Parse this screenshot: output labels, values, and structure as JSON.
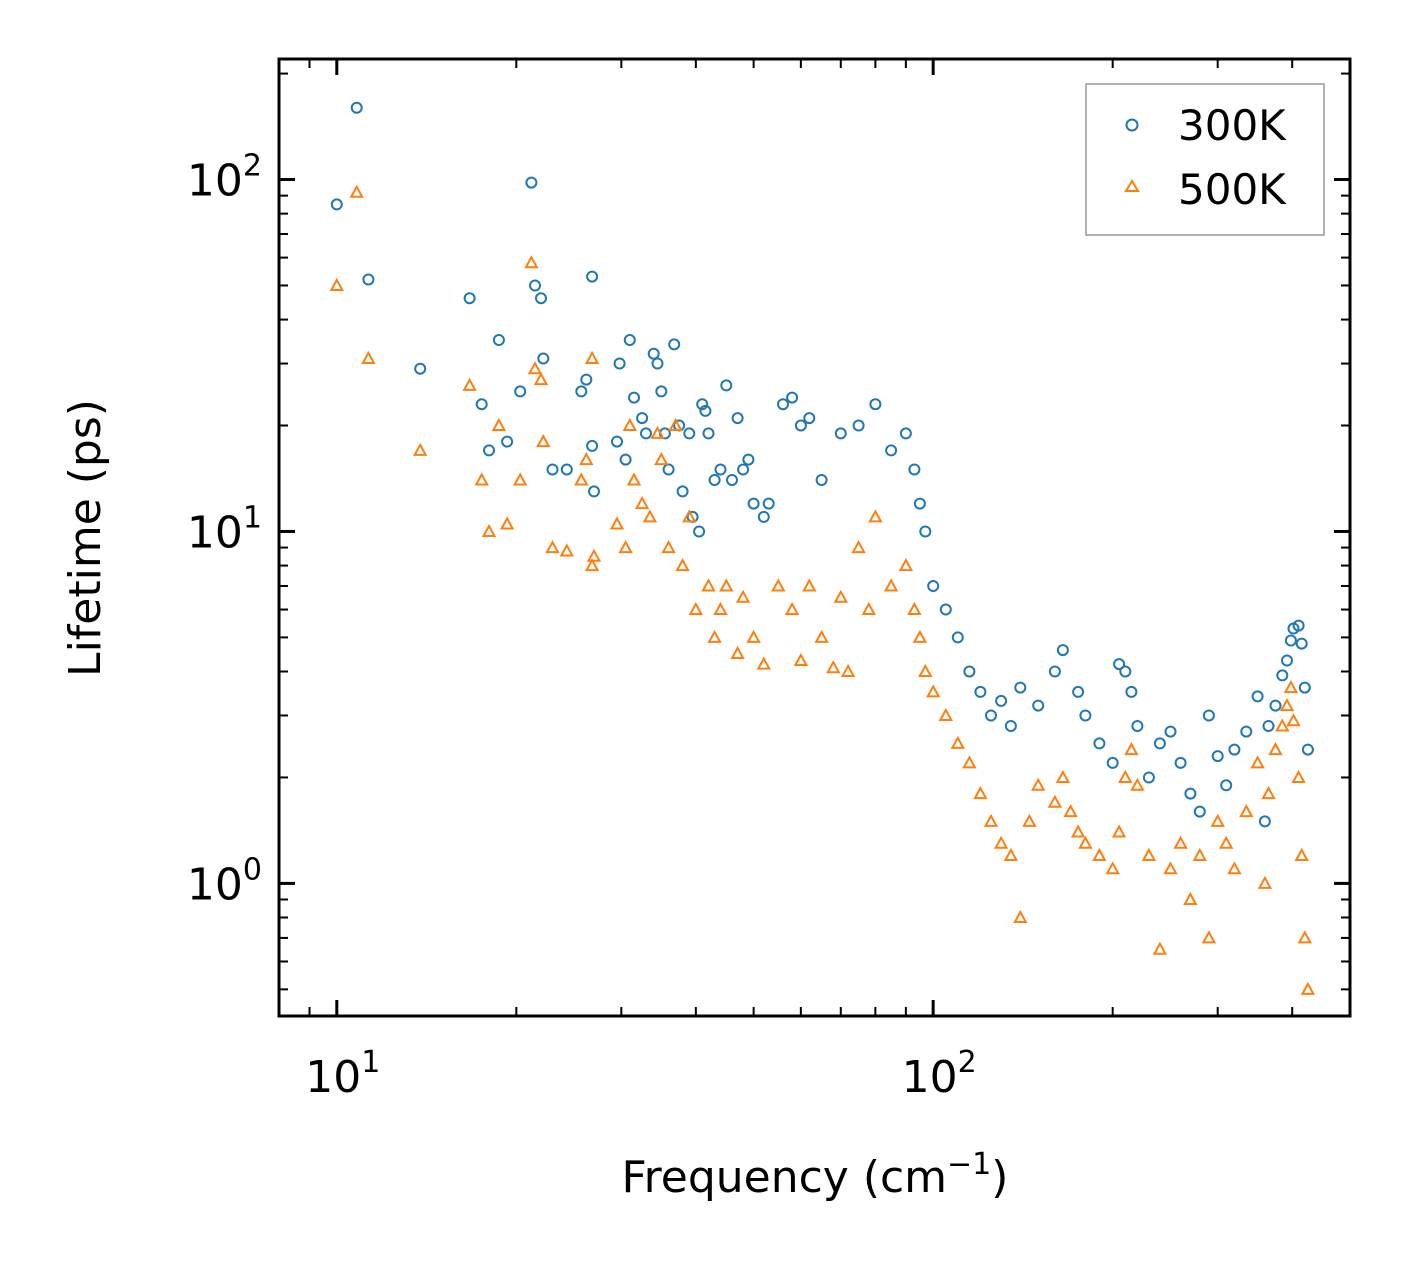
{
  "chart_data": {
    "type": "scatter",
    "title": "",
    "xlabel": "Frequency (cm",
    "xlabel_sup": "−1",
    "xlabel_tail": ")",
    "ylabel": "Lifetime (ps)",
    "xscale": "log",
    "yscale": "log",
    "xlim": [
      8,
      500
    ],
    "ylim": [
      0.42,
      220
    ],
    "x_ticks": [
      {
        "value": 10,
        "base": "10",
        "exp": "1"
      },
      {
        "value": 100,
        "base": "10",
        "exp": "2"
      }
    ],
    "y_ticks": [
      {
        "value": 1,
        "base": "10",
        "exp": "0"
      },
      {
        "value": 10,
        "base": "10",
        "exp": "1"
      },
      {
        "value": 100,
        "base": "10",
        "exp": "2"
      }
    ],
    "legend_position": "top-right",
    "series": [
      {
        "name": "300K",
        "marker": "circle",
        "color": "#1f77b4",
        "points": [
          [
            10.0,
            85
          ],
          [
            10.8,
            160
          ],
          [
            11.3,
            52
          ],
          [
            13.8,
            29
          ],
          [
            16.7,
            46
          ],
          [
            17.5,
            23
          ],
          [
            18.0,
            17
          ],
          [
            18.7,
            35
          ],
          [
            19.3,
            18
          ],
          [
            20.3,
            25
          ],
          [
            21.2,
            98
          ],
          [
            21.5,
            50
          ],
          [
            22.0,
            46
          ],
          [
            22.2,
            31
          ],
          [
            23.0,
            15
          ],
          [
            24.3,
            15
          ],
          [
            25.7,
            25
          ],
          [
            26.2,
            27
          ],
          [
            26.8,
            53
          ],
          [
            26.8,
            17.5
          ],
          [
            27.0,
            13
          ],
          [
            29.5,
            18
          ],
          [
            29.8,
            30
          ],
          [
            30.5,
            16
          ],
          [
            31.0,
            35
          ],
          [
            31.5,
            24
          ],
          [
            32.5,
            21
          ],
          [
            33.0,
            19
          ],
          [
            34.0,
            32
          ],
          [
            34.5,
            30
          ],
          [
            35.0,
            25
          ],
          [
            35.5,
            19
          ],
          [
            36.0,
            15
          ],
          [
            36.8,
            34
          ],
          [
            37.5,
            20
          ],
          [
            38.0,
            13
          ],
          [
            39.0,
            19
          ],
          [
            39.5,
            11
          ],
          [
            40.5,
            10
          ],
          [
            41.0,
            23
          ],
          [
            41.5,
            22
          ],
          [
            42.0,
            19
          ],
          [
            43.0,
            14
          ],
          [
            44.0,
            15
          ],
          [
            45.0,
            26
          ],
          [
            46.0,
            14
          ],
          [
            47.0,
            21
          ],
          [
            48.0,
            15
          ],
          [
            49.0,
            16
          ],
          [
            50.0,
            12
          ],
          [
            52.0,
            11
          ],
          [
            53.0,
            12
          ],
          [
            56.0,
            23
          ],
          [
            58.0,
            24
          ],
          [
            60.0,
            20
          ],
          [
            62.0,
            21
          ],
          [
            65.0,
            14
          ],
          [
            70.0,
            19
          ],
          [
            75.0,
            20
          ],
          [
            80.0,
            23
          ],
          [
            85.0,
            17
          ],
          [
            90.0,
            19
          ],
          [
            93.0,
            15
          ],
          [
            95.0,
            12
          ],
          [
            97.0,
            10
          ],
          [
            100.0,
            7
          ],
          [
            105.0,
            6
          ],
          [
            110.0,
            5
          ],
          [
            115.0,
            4
          ],
          [
            120.0,
            3.5
          ],
          [
            125.0,
            3
          ],
          [
            130.0,
            3.3
          ],
          [
            135.0,
            2.8
          ],
          [
            140.0,
            3.6
          ],
          [
            150.0,
            3.2
          ],
          [
            160.0,
            4
          ],
          [
            165.0,
            4.6
          ],
          [
            175.0,
            3.5
          ],
          [
            180.0,
            3
          ],
          [
            190.0,
            2.5
          ],
          [
            200.0,
            2.2
          ],
          [
            205.0,
            4.2
          ],
          [
            210.0,
            4
          ],
          [
            215.0,
            3.5
          ],
          [
            220.0,
            2.8
          ],
          [
            230.0,
            2
          ],
          [
            240.0,
            2.5
          ],
          [
            250.0,
            2.7
          ],
          [
            260.0,
            2.2
          ],
          [
            270.0,
            1.8
          ],
          [
            280.0,
            1.6
          ],
          [
            290.0,
            3
          ],
          [
            300.0,
            2.3
          ],
          [
            310.0,
            1.9
          ],
          [
            320.0,
            2.4
          ],
          [
            335.0,
            2.7
          ],
          [
            350.0,
            3.4
          ],
          [
            360.0,
            1.5
          ],
          [
            365.0,
            2.8
          ],
          [
            375.0,
            3.2
          ],
          [
            385.0,
            3.9
          ],
          [
            392.0,
            4.3
          ],
          [
            398.0,
            4.9
          ],
          [
            402.0,
            5.3
          ],
          [
            410.0,
            5.4
          ],
          [
            415.0,
            4.8
          ],
          [
            420.0,
            3.6
          ],
          [
            425.0,
            2.4
          ]
        ]
      },
      {
        "name": "500K",
        "marker": "triangle",
        "color": "#ff7f0e",
        "points": [
          [
            10.0,
            50
          ],
          [
            10.8,
            92
          ],
          [
            11.3,
            31
          ],
          [
            13.8,
            17
          ],
          [
            16.7,
            26
          ],
          [
            17.5,
            14
          ],
          [
            18.0,
            10
          ],
          [
            18.7,
            20
          ],
          [
            19.3,
            10.5
          ],
          [
            20.3,
            14
          ],
          [
            21.2,
            58
          ],
          [
            21.5,
            29
          ],
          [
            22.0,
            27
          ],
          [
            22.2,
            18
          ],
          [
            23.0,
            9
          ],
          [
            24.3,
            8.8
          ],
          [
            25.7,
            14
          ],
          [
            26.2,
            16
          ],
          [
            26.8,
            31
          ],
          [
            26.8,
            8
          ],
          [
            27.0,
            8.5
          ],
          [
            29.5,
            10.5
          ],
          [
            30.5,
            9
          ],
          [
            31.0,
            20
          ],
          [
            31.5,
            14
          ],
          [
            32.5,
            12
          ],
          [
            33.5,
            11
          ],
          [
            34.5,
            19
          ],
          [
            35.0,
            16
          ],
          [
            36.0,
            9
          ],
          [
            37.0,
            20
          ],
          [
            38.0,
            8
          ],
          [
            39.0,
            11
          ],
          [
            40.0,
            6
          ],
          [
            42.0,
            7
          ],
          [
            43.0,
            5
          ],
          [
            44.0,
            6
          ],
          [
            45.0,
            7
          ],
          [
            47.0,
            4.5
          ],
          [
            48.0,
            6.5
          ],
          [
            50.0,
            5
          ],
          [
            52.0,
            4.2
          ],
          [
            55.0,
            7
          ],
          [
            58.0,
            6
          ],
          [
            60.0,
            4.3
          ],
          [
            62.0,
            7
          ],
          [
            65.0,
            5
          ],
          [
            68.0,
            4.1
          ],
          [
            70.0,
            6.5
          ],
          [
            72.0,
            4
          ],
          [
            75.0,
            9
          ],
          [
            78.0,
            6
          ],
          [
            80.0,
            11
          ],
          [
            85.0,
            7
          ],
          [
            90.0,
            8
          ],
          [
            93.0,
            6
          ],
          [
            95.0,
            5
          ],
          [
            97.0,
            4
          ],
          [
            100.0,
            3.5
          ],
          [
            105.0,
            3
          ],
          [
            110.0,
            2.5
          ],
          [
            115.0,
            2.2
          ],
          [
            120.0,
            1.8
          ],
          [
            125.0,
            1.5
          ],
          [
            130.0,
            1.3
          ],
          [
            135.0,
            1.2
          ],
          [
            140.0,
            0.8
          ],
          [
            145.0,
            1.5
          ],
          [
            150.0,
            1.9
          ],
          [
            160.0,
            1.7
          ],
          [
            165.0,
            2
          ],
          [
            170.0,
            1.6
          ],
          [
            175.0,
            1.4
          ],
          [
            180.0,
            1.3
          ],
          [
            190.0,
            1.2
          ],
          [
            200.0,
            1.1
          ],
          [
            205.0,
            1.4
          ],
          [
            210.0,
            2
          ],
          [
            215.0,
            2.4
          ],
          [
            220.0,
            1.9
          ],
          [
            230.0,
            1.2
          ],
          [
            240.0,
            0.65
          ],
          [
            250.0,
            1.1
          ],
          [
            260.0,
            1.3
          ],
          [
            270.0,
            0.9
          ],
          [
            280.0,
            1.2
          ],
          [
            290.0,
            0.7
          ],
          [
            300.0,
            1.5
          ],
          [
            310.0,
            1.3
          ],
          [
            320.0,
            1.1
          ],
          [
            335.0,
            1.6
          ],
          [
            350.0,
            2.2
          ],
          [
            360.0,
            1
          ],
          [
            365.0,
            1.8
          ],
          [
            375.0,
            2.4
          ],
          [
            385.0,
            2.8
          ],
          [
            392.0,
            3.2
          ],
          [
            398.0,
            3.6
          ],
          [
            402.0,
            2.9
          ],
          [
            410.0,
            2
          ],
          [
            415.0,
            1.2
          ],
          [
            420.0,
            0.7
          ],
          [
            425.0,
            0.5
          ]
        ]
      }
    ]
  }
}
